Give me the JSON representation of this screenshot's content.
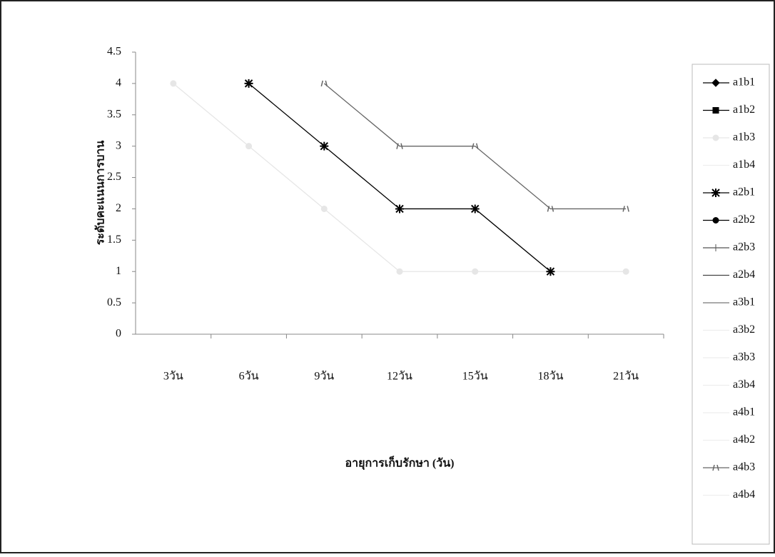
{
  "chart_data": {
    "type": "line",
    "y_label": "ระดับคะแนนการบาน",
    "x_label": "อายุการเก็บรักษา (วัน)",
    "categories": [
      "3วัน",
      "6วัน",
      "9วัน",
      "12วัน",
      "15วัน",
      "18วัน",
      "21วัน"
    ],
    "ylim": [
      0,
      4.5
    ],
    "yticks": [
      0,
      0.5,
      1,
      1.5,
      2,
      2.5,
      3,
      3.5,
      4,
      4.5
    ],
    "grid": false,
    "legend": "right",
    "series": [
      {
        "name": "a1b1",
        "color": "#000000",
        "marker": "diamond",
        "values": [
          null,
          null,
          null,
          null,
          null,
          null,
          null
        ]
      },
      {
        "name": "a1b2",
        "color": "#000000",
        "marker": "square",
        "values": [
          null,
          null,
          null,
          null,
          null,
          null,
          null
        ]
      },
      {
        "name": "a1b3",
        "color": "#e6e6e6",
        "marker": "circle",
        "values": [
          4,
          3,
          2,
          1,
          1,
          1,
          1
        ]
      },
      {
        "name": "a1b4",
        "color": "#eeeeee",
        "marker": "none",
        "values": [
          null,
          null,
          null,
          null,
          null,
          null,
          null
        ]
      },
      {
        "name": "a2b1",
        "color": "#000000",
        "marker": "asterisk",
        "values": [
          null,
          4,
          3,
          2,
          2,
          1,
          null
        ]
      },
      {
        "name": "a2b2",
        "color": "#000000",
        "marker": "circle",
        "values": [
          null,
          null,
          null,
          null,
          null,
          null,
          null
        ]
      },
      {
        "name": "a2b3",
        "color": "#555555",
        "marker": "plus",
        "values": [
          null,
          null,
          null,
          null,
          null,
          null,
          null
        ]
      },
      {
        "name": "a2b4",
        "color": "#444444",
        "marker": "dash",
        "values": [
          null,
          null,
          null,
          null,
          null,
          null,
          null
        ]
      },
      {
        "name": "a3b1",
        "color": "#777777",
        "marker": "dash",
        "values": [
          null,
          null,
          null,
          null,
          null,
          null,
          null
        ]
      },
      {
        "name": "a3b2",
        "color": "#eeeeee",
        "marker": "none",
        "values": [
          null,
          null,
          null,
          null,
          null,
          null,
          null
        ]
      },
      {
        "name": "a3b3",
        "color": "#eeeeee",
        "marker": "none",
        "values": [
          null,
          null,
          null,
          null,
          null,
          null,
          null
        ]
      },
      {
        "name": "a3b4",
        "color": "#eeeeee",
        "marker": "none",
        "values": [
          null,
          null,
          null,
          null,
          null,
          null,
          null
        ]
      },
      {
        "name": "a4b1",
        "color": "#eeeeee",
        "marker": "none",
        "values": [
          null,
          null,
          null,
          null,
          null,
          null,
          null
        ]
      },
      {
        "name": "a4b2",
        "color": "#eeeeee",
        "marker": "none",
        "values": [
          null,
          null,
          null,
          null,
          null,
          null,
          null
        ]
      },
      {
        "name": "a4b3",
        "color": "#666666",
        "marker": "star",
        "values": [
          null,
          null,
          4,
          3,
          3,
          2,
          2
        ]
      },
      {
        "name": "a4b4",
        "color": "#eeeeee",
        "marker": "none",
        "values": [
          null,
          null,
          null,
          null,
          null,
          null,
          null
        ]
      }
    ]
  }
}
